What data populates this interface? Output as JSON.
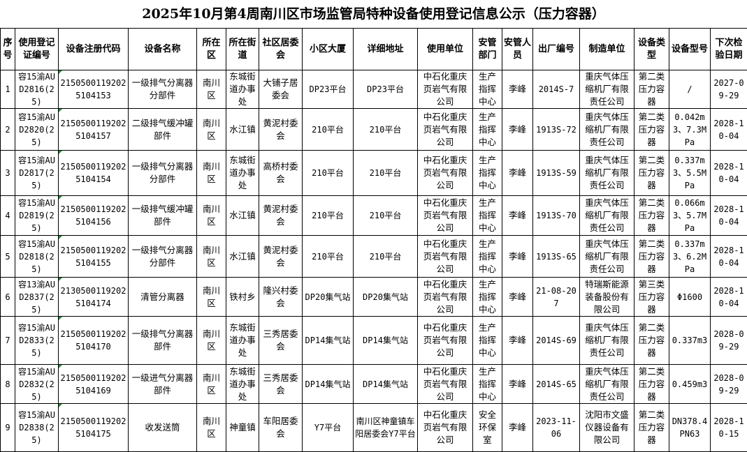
{
  "title": "2025年10月第4周南川区市场监管局特种设备使用登记信息公示（压力容器）",
  "headers": [
    "序号",
    "使用登记证编号",
    "设备注册代码",
    "设备名称",
    "所在区",
    "所在街道",
    "社区居委会",
    "小区大厦",
    "详细地址",
    "使用单位",
    "安管部门",
    "安管人员",
    "出厂编号",
    "制造单位",
    "设备类型",
    "设备型号",
    "下次检验日期"
  ],
  "rows": [
    [
      "1",
      "容15渝AUD2816(25)",
      "21505001192025104153",
      "一级排气分离器分部件",
      "南川区",
      "东城街道办事处",
      "大铺子居委会",
      "DP23平台",
      "DP23平台",
      "中石化重庆页岩气有限公司",
      "生产指挥中心",
      "李峰",
      "2014S-7",
      "重庆气体压缩机厂有限责任公司",
      "第二类压力容器",
      "/",
      "2027-09-29"
    ],
    [
      "2",
      "容15渝AUD2820(25)",
      "21505001192025104157",
      "二级排气缓冲罐部件",
      "南川区",
      "水江镇",
      "黄泥村委会",
      "210平台",
      "210平台",
      "中石化重庆页岩气有限公司",
      "生产指挥中心",
      "李峰",
      "1913S-72",
      "重庆气体压缩机厂有限责任公司",
      "第二类压力容器",
      "0.042m3、7.3MPa",
      "2028-10-04"
    ],
    [
      "3",
      "容15渝AUD2817(25)",
      "21505001192025104154",
      "一级排气分离器分部件",
      "南川区",
      "东城街道办事处",
      "高桥村委会",
      "210平台",
      "210平台",
      "中石化重庆页岩气有限公司",
      "生产指挥中心",
      "李峰",
      "1913S-59",
      "重庆气体压缩机厂有限责任公司",
      "第二类压力容器",
      "0.337m3、5.5MPa",
      "2028-10-04"
    ],
    [
      "4",
      "容15渝AUD2819(25)",
      "21505001192025104156",
      "一级排气缓冲罐部件",
      "南川区",
      "水江镇",
      "黄泥村委会",
      "210平台",
      "210平台",
      "中石化重庆页岩气有限公司",
      "生产指挥中心",
      "李峰",
      "1913S-70",
      "重庆气体压缩机厂有限责任公司",
      "第二类压力容器",
      "0.066m3、5.7MPa",
      "2028-10-04"
    ],
    [
      "5",
      "容15渝AUD2818(25)",
      "21505001192025104155",
      "一级排气分离器分部件",
      "南川区",
      "水江镇",
      "黄泥村委会",
      "210平台",
      "210平台",
      "中石化重庆页岩气有限公司",
      "生产指挥中心",
      "李峰",
      "1913S-65",
      "重庆气体压缩机厂有限责任公司",
      "第二类压力容器",
      "0.337m3、6.2MPa",
      "2028-10-04"
    ],
    [
      "6",
      "容13渝AUD2837(25)",
      "21305001192025104174",
      "清管分离器",
      "南川区",
      "铁村乡",
      "隆兴村委会",
      "DP20集气站",
      "DP20集气站",
      "中石化重庆页岩气有限公司",
      "生产指挥中心",
      "李峰",
      "21-08-207",
      "特瑞斯能源装备股份有限公司",
      "第三类压力容器",
      "Φ1600",
      "2028-10-04"
    ],
    [
      "7",
      "容15渝AUD2833(25)",
      "21505001192025104170",
      "一级排气分离器部件",
      "南川区",
      "东城街道办事处",
      "三秀居委会",
      "DP14集气站",
      "DP14集气站",
      "中石化重庆页岩气有限公司",
      "生产指挥中心",
      "李峰",
      "2014S-69",
      "重庆气体压缩机厂有限责任公司",
      "第二类压力容器",
      "0.337m3",
      "2028-09-29"
    ],
    [
      "8",
      "容15渝AUD2832(25)",
      "21505001192025104169",
      "一级进气分离器部件",
      "南川区",
      "东城街道办事处",
      "三秀居委会",
      "DP14集气站",
      "DP14集气站",
      "中石化重庆页岩气有限公司",
      "生产指挥中心",
      "李峰",
      "2014S-65",
      "重庆气体压缩机厂有限责任公司",
      "第二类压力容器",
      "0.459m3",
      "2028-09-29"
    ],
    [
      "9",
      "容15渝AUD2838(25)",
      "21505001192025104175",
      "收发送筒",
      "南川区",
      "神童镇",
      "车阳居委会",
      "Y7平台",
      "南川区神童镇车阳居委会Y7平台",
      "中石化重庆页岩气有限公司",
      "安全环保室",
      "李峰",
      "2023-11-06",
      "沈阳市文盛仪器设备有限公司",
      "第二类压力容器",
      "DN378.4 PN63",
      "2028-10-15"
    ]
  ],
  "colors": {
    "comment_marker": "#1a8f2a",
    "border": "#000000"
  }
}
